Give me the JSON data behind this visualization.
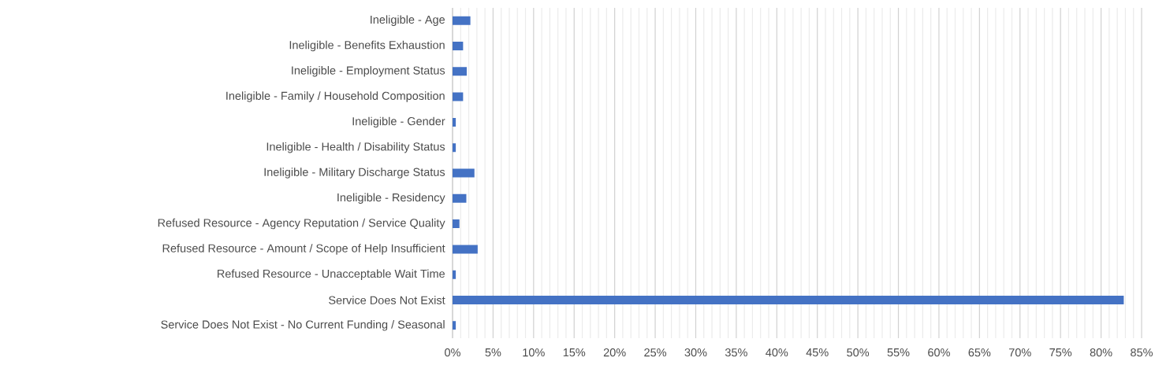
{
  "chart_data": {
    "type": "bar",
    "orientation": "horizontal",
    "categories": [
      "Ineligible - Age",
      "Ineligible - Benefits Exhaustion",
      "Ineligible - Employment Status",
      "Ineligible - Family / Household Composition",
      "Ineligible - Gender",
      "Ineligible - Health / Disability Status",
      "Ineligible - Military Discharge Status",
      "Ineligible - Residency",
      "Refused Resource - Agency Reputation / Service Quality",
      "Refused Resource - Amount / Scope of Help Insufficient",
      "Refused Resource - Unacceptable Wait Time",
      "Service Does Not Exist",
      "Service Does Not Exist - No Current Funding / Seasonal"
    ],
    "values": [
      2.2,
      1.3,
      1.75,
      1.3,
      0.4,
      0.4,
      2.7,
      1.7,
      0.85,
      3.1,
      0.4,
      82.8,
      0.4
    ],
    "color": "#4472c4",
    "xlim": [
      0,
      85
    ],
    "xticks": [
      {
        "value": 0,
        "label": "0%"
      },
      {
        "value": 5,
        "label": "5%"
      },
      {
        "value": 10,
        "label": "10%"
      },
      {
        "value": 15,
        "label": "15%"
      },
      {
        "value": 20,
        "label": "20%"
      },
      {
        "value": 25,
        "label": "25%"
      },
      {
        "value": 30,
        "label": "30%"
      },
      {
        "value": 35,
        "label": "35%"
      },
      {
        "value": 40,
        "label": "40%"
      },
      {
        "value": 45,
        "label": "45%"
      },
      {
        "value": 50,
        "label": "50%"
      },
      {
        "value": 55,
        "label": "55%"
      },
      {
        "value": 60,
        "label": "60%"
      },
      {
        "value": 65,
        "label": "65%"
      },
      {
        "value": 70,
        "label": "70%"
      },
      {
        "value": 75,
        "label": "75%"
      },
      {
        "value": 80,
        "label": "80%"
      },
      {
        "value": 85,
        "label": "85%"
      }
    ],
    "grid": "x"
  }
}
